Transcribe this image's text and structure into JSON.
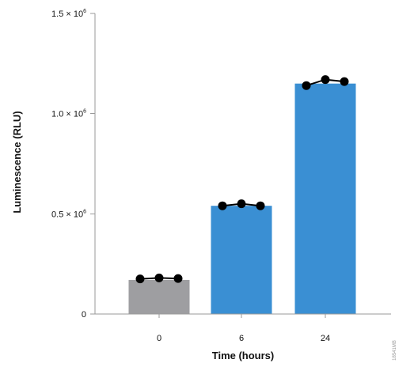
{
  "chart_data": {
    "type": "bar",
    "categories": [
      "0",
      "6",
      "24"
    ],
    "values": [
      170000,
      540000,
      1150000
    ],
    "bar_colors": [
      "#9e9ea1",
      "#3a8fd3",
      "#3a8fd3"
    ],
    "replicates": [
      [
        175000,
        180000,
        177000
      ],
      [
        540000,
        550000,
        540000
      ],
      [
        1140000,
        1170000,
        1160000
      ]
    ],
    "point_color": "#000000",
    "xlabel": "Time (hours)",
    "ylabel": "Luminescence (RLU)",
    "ylim": [
      0,
      1500000
    ],
    "yticks": [
      {
        "value": 0,
        "mantissa": "0",
        "exponent": ""
      },
      {
        "value": 500000,
        "mantissa": "0.5 × 10",
        "exponent": "6"
      },
      {
        "value": 1000000,
        "mantissa": "1.0 × 10",
        "exponent": "6"
      },
      {
        "value": 1500000,
        "mantissa": "1.5 × 10",
        "exponent": "6"
      }
    ],
    "grid": false,
    "legend": "none"
  },
  "watermark": "18541MB"
}
